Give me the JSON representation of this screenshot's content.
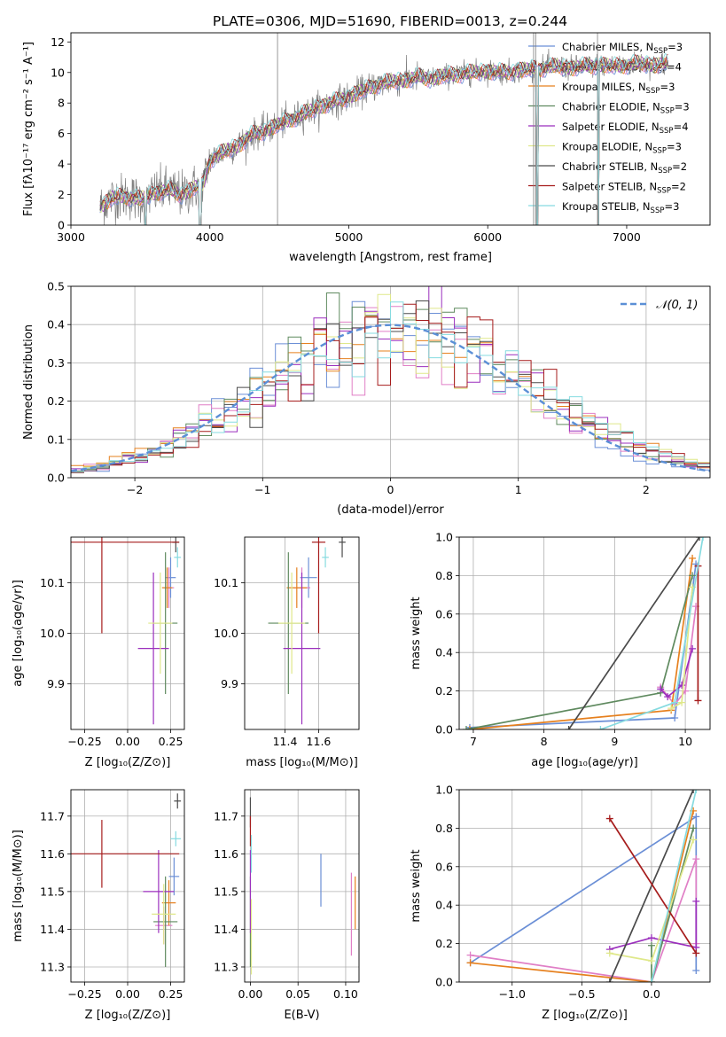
{
  "title": "PLATE=0306, MJD=51690, FIBERID=0013, z=0.244",
  "colors": {
    "Chabrier MILES": "#6b8fd6",
    "Salpeter MILES": "#e07fc6",
    "Kroupa MILES": "#e6801e",
    "Chabrier ELODIE": "#5f8a5f",
    "Salpeter ELODIE": "#9b2fbd",
    "Kroupa ELODIE": "#dfe88a",
    "Chabrier STELIB": "#4a4a4a",
    "Salpeter STELIB": "#a61c1c",
    "Kroupa STELIB": "#86dbe0",
    "data": "#808080",
    "normal": "#5b8fd6"
  },
  "models": [
    {
      "name": "Chabrier MILES",
      "label": "Chabrier MILES, N",
      "sub": "SSP",
      "n": "=3"
    },
    {
      "name": "Salpeter MILES",
      "label": "Salpeter MILES, N",
      "sub": "SSP",
      "n": "=4"
    },
    {
      "name": "Kroupa MILES",
      "label": "Kroupa MILES, N",
      "sub": "SSP",
      "n": "=3"
    },
    {
      "name": "Chabrier ELODIE",
      "label": "Chabrier ELODIE, N",
      "sub": "SSP",
      "n": "=3"
    },
    {
      "name": "Salpeter ELODIE",
      "label": "Salpeter ELODIE, N",
      "sub": "SSP",
      "n": "=4"
    },
    {
      "name": "Kroupa ELODIE",
      "label": "Kroupa ELODIE, N",
      "sub": "SSP",
      "n": "=3"
    },
    {
      "name": "Chabrier STELIB",
      "label": "Chabrier STELIB, N",
      "sub": "SSP",
      "n": "=2"
    },
    {
      "name": "Salpeter STELIB",
      "label": "Salpeter STELIB, N",
      "sub": "SSP",
      "n": "=2"
    },
    {
      "name": "Kroupa STELIB",
      "label": "Kroupa STELIB, N",
      "sub": "SSP",
      "n": "=3"
    }
  ],
  "chart_data": [
    {
      "id": "spectrum",
      "type": "line",
      "xlabel": "wavelength [Angstrom, rest frame]",
      "ylabel": "Flux [fλ10⁻¹⁷ erg cm⁻² s⁻¹ A⁻¹]",
      "xlim": [
        3000,
        7600
      ],
      "ylim": [
        0,
        12.6
      ],
      "xticks": [
        3000,
        4000,
        5000,
        6000,
        7000
      ],
      "yticks": [
        0,
        2,
        4,
        6,
        8,
        10,
        12
      ],
      "continuum": {
        "wavelength": [
          3210,
          3300,
          3400,
          3500,
          3600,
          3700,
          3800,
          3900,
          3950,
          4000,
          4100,
          4200,
          4300,
          4400,
          4500,
          4600,
          4700,
          4800,
          4900,
          5000,
          5100,
          5200,
          5300,
          5400,
          5500,
          5600,
          5700,
          5800,
          5900,
          6000,
          6100,
          6200,
          6300,
          6400,
          6500,
          6600,
          6700,
          6800,
          6900,
          7000,
          7100,
          7200,
          7300
        ],
        "flux": [
          1.2,
          1.8,
          1.9,
          1.7,
          2.1,
          2.3,
          2.0,
          2.5,
          2.6,
          4.3,
          4.8,
          5.2,
          5.9,
          6.2,
          6.6,
          7.0,
          7.4,
          7.8,
          8.1,
          8.4,
          8.8,
          9.2,
          9.4,
          9.5,
          9.7,
          9.6,
          9.8,
          9.9,
          10.0,
          10.1,
          10.0,
          10.1,
          10.2,
          10.3,
          10.4,
          10.3,
          10.4,
          10.5,
          10.4,
          10.5,
          10.6,
          10.5,
          10.6
        ]
      }
    },
    {
      "id": "residuals",
      "type": "histogram",
      "xlabel": "(data-model)/error",
      "ylabel": "Normed distribution",
      "xlim": [
        -2.5,
        2.5
      ],
      "ylim": [
        0,
        0.5
      ],
      "xticks": [
        -2,
        -1,
        0,
        1,
        2
      ],
      "yticks": [
        0.0,
        0.1,
        0.2,
        0.3,
        0.4,
        0.5
      ],
      "legend": "𝒩(0, 1)"
    },
    {
      "id": "age-vs-Z",
      "type": "errorbar",
      "xlabel": "Z [log₁₀(Z/Z⊙)]",
      "ylabel": "age  [log₁₀(age/yr)]",
      "xlim": [
        -0.33,
        0.33
      ],
      "ylim": [
        9.81,
        10.19
      ],
      "xticks": [
        -0.25,
        0.0,
        0.25
      ],
      "yticks": [
        9.9,
        10.0,
        10.1
      ],
      "points": [
        {
          "model": "Chabrier MILES",
          "x": 0.25,
          "y": 10.11,
          "xerr": 0.03,
          "yerr": 0.04
        },
        {
          "model": "Salpeter MILES",
          "x": 0.24,
          "y": 10.09,
          "xerr": 0.03,
          "yerr": 0.04
        },
        {
          "model": "Kroupa MILES",
          "x": 0.23,
          "y": 10.09,
          "xerr": 0.03,
          "yerr": 0.04
        },
        {
          "model": "Chabrier ELODIE",
          "x": 0.22,
          "y": 10.02,
          "xerr": 0.07,
          "yerr": 0.14
        },
        {
          "model": "Salpeter ELODIE",
          "x": 0.15,
          "y": 9.97,
          "xerr": 0.09,
          "yerr": 0.15
        },
        {
          "model": "Kroupa ELODIE",
          "x": 0.19,
          "y": 10.02,
          "xerr": 0.07,
          "yerr": 0.1
        },
        {
          "model": "Chabrier STELIB",
          "x": 0.28,
          "y": 10.18,
          "xerr": 0.02,
          "yerr": 0.02
        },
        {
          "model": "Salpeter STELIB",
          "x": -0.15,
          "y": 10.18,
          "xerr": 0.45,
          "yerr": 0.18
        },
        {
          "model": "Kroupa STELIB",
          "x": 0.29,
          "y": 10.15,
          "xerr": 0.02,
          "yerr": 0.02
        }
      ]
    },
    {
      "id": "age-vs-mass",
      "type": "errorbar",
      "xlabel": "mass [log₁₀(M/M⊙)]",
      "ylabel": "",
      "xlim": [
        11.16,
        11.84
      ],
      "ylim": [
        9.81,
        10.19
      ],
      "xticks": [
        11.4,
        11.6
      ],
      "yticks": [
        9.9,
        10.0,
        10.1
      ],
      "points": [
        {
          "model": "Chabrier MILES",
          "x": 11.54,
          "y": 10.11,
          "xerr": 0.05,
          "yerr": 0.04
        },
        {
          "model": "Salpeter MILES",
          "x": 11.5,
          "y": 10.09,
          "xerr": 0.05,
          "yerr": 0.04
        },
        {
          "model": "Kroupa MILES",
          "x": 11.47,
          "y": 10.09,
          "xerr": 0.06,
          "yerr": 0.04
        },
        {
          "model": "Chabrier ELODIE",
          "x": 11.42,
          "y": 10.02,
          "xerr": 0.12,
          "yerr": 0.14
        },
        {
          "model": "Salpeter ELODIE",
          "x": 11.5,
          "y": 9.97,
          "xerr": 0.11,
          "yerr": 0.15
        },
        {
          "model": "Kroupa ELODIE",
          "x": 11.44,
          "y": 10.02,
          "xerr": 0.08,
          "yerr": 0.1
        },
        {
          "model": "Chabrier STELIB",
          "x": 11.74,
          "y": 10.18,
          "xerr": 0.02,
          "yerr": 0.03
        },
        {
          "model": "Salpeter STELIB",
          "x": 11.6,
          "y": 10.18,
          "xerr": 0.04,
          "yerr": 0.18
        },
        {
          "model": "Kroupa STELIB",
          "x": 11.64,
          "y": 10.15,
          "xerr": 0.02,
          "yerr": 0.02
        }
      ]
    },
    {
      "id": "weight-vs-age",
      "type": "line",
      "xlabel": "age  [log₁₀(age/yr)]",
      "ylabel": "mass weight",
      "xlim": [
        6.8,
        10.35
      ],
      "ylim": [
        0,
        1
      ],
      "xticks": [
        7,
        8,
        9,
        10
      ],
      "yticks": [
        0.0,
        0.2,
        0.4,
        0.6,
        0.8,
        1.0
      ],
      "series": [
        {
          "model": "Chabrier MILES",
          "points": [
            [
              6.95,
              0.01
            ],
            [
              9.85,
              0.06
            ],
            [
              10.15,
              0.86
            ]
          ]
        },
        {
          "model": "Salpeter MILES",
          "points": [
            [
              9.65,
              0.22
            ],
            [
              9.85,
              0.13
            ],
            [
              10.0,
              0.2
            ],
            [
              10.15,
              0.64
            ]
          ]
        },
        {
          "model": "Kroupa MILES",
          "points": [
            [
              6.95,
              0.0
            ],
            [
              9.8,
              0.1
            ],
            [
              10.1,
              0.89
            ]
          ]
        },
        {
          "model": "Chabrier ELODIE",
          "points": [
            [
              6.9,
              0.0
            ],
            [
              9.65,
              0.19
            ],
            [
              10.1,
              0.8
            ]
          ]
        },
        {
          "model": "Salpeter ELODIE",
          "points": [
            [
              9.65,
              0.21
            ],
            [
              9.75,
              0.17
            ],
            [
              9.95,
              0.23
            ],
            [
              10.1,
              0.42
            ]
          ]
        },
        {
          "model": "Kroupa ELODIE",
          "points": [
            [
              9.8,
              0.11
            ],
            [
              9.95,
              0.14
            ],
            [
              10.1,
              0.74
            ]
          ]
        },
        {
          "model": "Chabrier STELIB",
          "points": [
            [
              8.35,
              0.0
            ],
            [
              10.2,
              1.0
            ]
          ]
        },
        {
          "model": "Salpeter STELIB",
          "points": [
            [
              10.18,
              0.15
            ],
            [
              10.18,
              0.85
            ]
          ]
        },
        {
          "model": "Kroupa STELIB",
          "points": [
            [
              8.8,
              0.0
            ],
            [
              9.85,
              0.14
            ],
            [
              10.25,
              1.0
            ]
          ]
        }
      ]
    },
    {
      "id": "mass-vs-Z",
      "type": "errorbar",
      "xlabel": "Z [log₁₀(Z/Z⊙)]",
      "ylabel": "mass [log₁₀(M/M⊙)]",
      "xlim": [
        -0.33,
        0.33
      ],
      "ylim": [
        11.26,
        11.77
      ],
      "xticks": [
        -0.25,
        0.0,
        0.25
      ],
      "yticks": [
        11.3,
        11.4,
        11.5,
        11.6,
        11.7
      ],
      "points": [
        {
          "model": "Chabrier MILES",
          "x": 0.27,
          "y": 11.54,
          "xerr": 0.03,
          "yerr": 0.05
        },
        {
          "model": "Salpeter MILES",
          "x": 0.21,
          "y": 11.41,
          "xerr": 0.05,
          "yerr": 0.05
        },
        {
          "model": "Kroupa MILES",
          "x": 0.24,
          "y": 11.47,
          "xerr": 0.04,
          "yerr": 0.06
        },
        {
          "model": "Chabrier ELODIE",
          "x": 0.22,
          "y": 11.42,
          "xerr": 0.07,
          "yerr": 0.12
        },
        {
          "model": "Salpeter ELODIE",
          "x": 0.18,
          "y": 11.5,
          "xerr": 0.09,
          "yerr": 0.11
        },
        {
          "model": "Kroupa ELODIE",
          "x": 0.21,
          "y": 11.44,
          "xerr": 0.07,
          "yerr": 0.08
        },
        {
          "model": "Chabrier STELIB",
          "x": 0.29,
          "y": 11.74,
          "xerr": 0.02,
          "yerr": 0.02
        },
        {
          "model": "Salpeter STELIB",
          "x": -0.15,
          "y": 11.6,
          "xerr": 0.45,
          "yerr": 0.09
        },
        {
          "model": "Kroupa STELIB",
          "x": 0.28,
          "y": 11.64,
          "xerr": 0.03,
          "yerr": 0.02
        }
      ]
    },
    {
      "id": "mass-vs-ebv",
      "type": "errorbar",
      "xlabel": "E(B-V)",
      "ylabel": "",
      "xlim": [
        -0.006,
        0.114
      ],
      "ylim": [
        11.26,
        11.77
      ],
      "xticks": [
        0.0,
        0.05,
        0.1
      ],
      "yticks": [
        11.3,
        11.4,
        11.5,
        11.6,
        11.7
      ],
      "points": [
        {
          "model": "Chabrier MILES",
          "x": 0.074,
          "y": 11.53,
          "xerr": 0.0,
          "yerr": 0.07
        },
        {
          "model": "Salpeter MILES",
          "x": 0.106,
          "y": 11.44,
          "xerr": 0.0,
          "yerr": 0.11
        },
        {
          "model": "Kroupa MILES",
          "x": 0.11,
          "y": 11.47,
          "xerr": 0.0,
          "yerr": 0.07
        },
        {
          "model": "Chabrier ELODIE",
          "x": 0.0,
          "y": 11.42,
          "xerr": 0.0,
          "yerr": 0.12
        },
        {
          "model": "Salpeter ELODIE",
          "x": 0.0,
          "y": 11.5,
          "xerr": 0.0,
          "yerr": 0.11
        },
        {
          "model": "Kroupa ELODIE",
          "x": 0.001,
          "y": 11.38,
          "xerr": 0.0,
          "yerr": 0.1
        },
        {
          "model": "Chabrier STELIB",
          "x": 0.0,
          "y": 11.71,
          "xerr": 0.0,
          "yerr": 0.04
        },
        {
          "model": "Salpeter STELIB",
          "x": 0.0,
          "y": 11.66,
          "xerr": 0.0,
          "yerr": 0.04
        },
        {
          "model": "Kroupa STELIB",
          "x": 0.001,
          "y": 11.6,
          "xerr": 0.0,
          "yerr": 0.05
        }
      ]
    },
    {
      "id": "weight-vs-Z",
      "type": "line",
      "xlabel": "Z [log₁₀(Z/Z⊙)]",
      "ylabel": "mass weight",
      "xlim": [
        -1.38,
        0.42
      ],
      "ylim": [
        0,
        1
      ],
      "xticks": [
        -1.0,
        -0.5,
        0.0
      ],
      "yticks": [
        0.0,
        0.2,
        0.4,
        0.6,
        0.8,
        1.0
      ],
      "series": [
        {
          "model": "Chabrier MILES",
          "points": [
            [
              -1.3,
              0.1
            ],
            [
              0.32,
              0.86
            ],
            [
              0.32,
              0.06
            ]
          ]
        },
        {
          "model": "Salpeter MILES",
          "points": [
            [
              -1.3,
              0.14
            ],
            [
              0.0,
              0.0
            ],
            [
              0.32,
              0.64
            ],
            [
              0.32,
              0.2
            ]
          ]
        },
        {
          "model": "Kroupa MILES",
          "points": [
            [
              -1.3,
              0.1
            ],
            [
              0.0,
              0.0
            ],
            [
              0.3,
              0.89
            ]
          ]
        },
        {
          "model": "Chabrier ELODIE",
          "points": [
            [
              0.0,
              0.19
            ],
            [
              0.0,
              0.0
            ],
            [
              0.3,
              0.8
            ]
          ]
        },
        {
          "model": "Salpeter ELODIE",
          "points": [
            [
              -0.3,
              0.17
            ],
            [
              0.0,
              0.23
            ],
            [
              0.32,
              0.18
            ],
            [
              0.32,
              0.42
            ]
          ]
        },
        {
          "model": "Kroupa ELODIE",
          "points": [
            [
              -0.3,
              0.15
            ],
            [
              0.0,
              0.11
            ],
            [
              0.3,
              0.74
            ]
          ]
        },
        {
          "model": "Chabrier STELIB",
          "points": [
            [
              -0.3,
              0.0
            ],
            [
              0.3,
              1.0
            ]
          ]
        },
        {
          "model": "Salpeter STELIB",
          "points": [
            [
              -0.3,
              0.85
            ],
            [
              0.32,
              0.15
            ]
          ]
        },
        {
          "model": "Kroupa STELIB",
          "points": [
            [
              0.0,
              0.0
            ],
            [
              0.32,
              1.0
            ]
          ]
        }
      ]
    }
  ]
}
